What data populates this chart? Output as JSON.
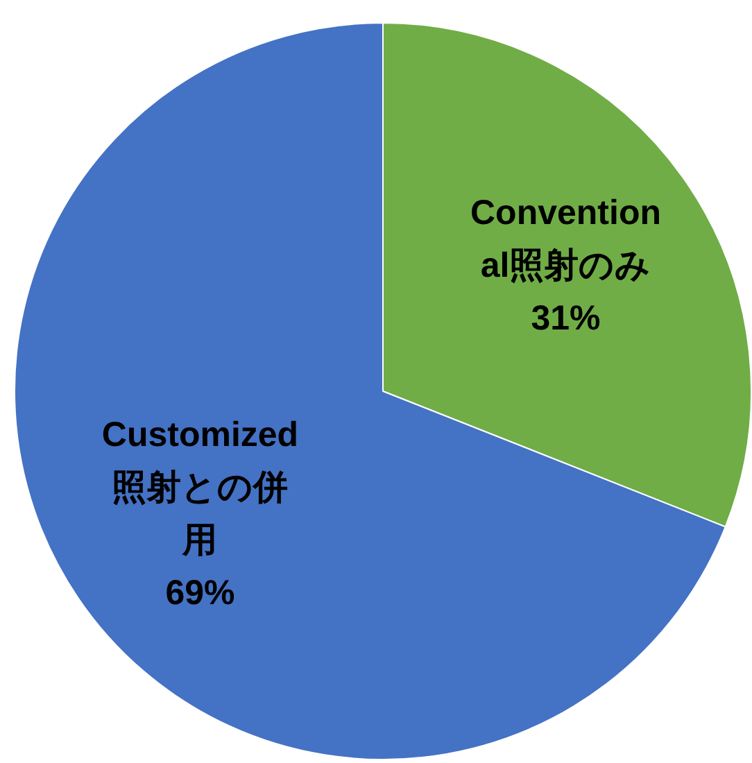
{
  "chart_data": {
    "type": "pie",
    "categories": [
      "Conventional照射のみ",
      "Customized照射との併用"
    ],
    "values": [
      31,
      69
    ],
    "value_labels": [
      "31%",
      "69%"
    ],
    "colors": [
      "#70ad47",
      "#4472c4"
    ],
    "legend": false
  }
}
